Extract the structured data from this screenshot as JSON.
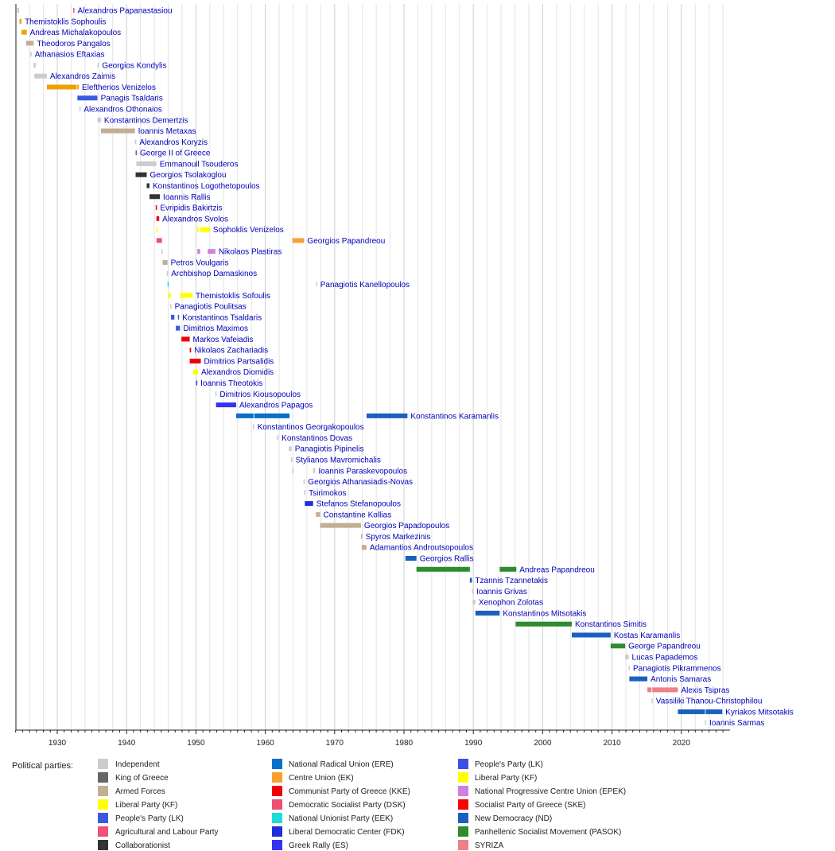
{
  "chart_data": {
    "type": "timeline",
    "xlim": [
      1924,
      2027
    ],
    "x_ticks": [
      1930,
      1940,
      1950,
      1960,
      1970,
      1980,
      1990,
      2000,
      2010,
      2020
    ],
    "grid": true,
    "legend_title": "Political parties:",
    "legend_placement": "bottom",
    "parties": [
      {
        "key": "ind",
        "name": "Independent",
        "color": "#cccccc"
      },
      {
        "key": "king",
        "name": "King of Greece",
        "color": "#666666"
      },
      {
        "key": "army",
        "name": "Armed Forces",
        "color": "#c2ae92"
      },
      {
        "key": "kf",
        "name": "Liberal Party (KF)",
        "color": "#ffff00"
      },
      {
        "key": "lk",
        "name": "People's Party (LK)",
        "color": "#3c5ae0"
      },
      {
        "key": "agr",
        "name": "Agricultural and Labour Party",
        "color": "#f0507a"
      },
      {
        "key": "col",
        "name": "Collaborationist",
        "color": "#333333"
      },
      {
        "key": "ere",
        "name": "National Radical Union (ERE)",
        "color": "#0a6fc8"
      },
      {
        "key": "ek",
        "name": "Centre Union (EK)",
        "color": "#f7a030"
      },
      {
        "key": "kke",
        "name": "Communist Party of Greece (KKE)",
        "color": "#f00000"
      },
      {
        "key": "dsk",
        "name": "Democratic Socialist Party (DSK)",
        "color": "#f05070"
      },
      {
        "key": "eek",
        "name": "National Unionist Party (EEK)",
        "color": "#20dcd8"
      },
      {
        "key": "fdk",
        "name": "Liberal Democratic Center (FDK)",
        "color": "#1e30dc"
      },
      {
        "key": "es",
        "name": "Greek Rally (ES)",
        "color": "#3434f0"
      },
      {
        "key": "lk2",
        "name": "People's Party (LK)",
        "color": "#3c50e8"
      },
      {
        "key": "kf2",
        "name": "Liberal Party (KF)",
        "color": "#ffff00"
      },
      {
        "key": "epek",
        "name": "National Progressive Centre Union (EPEK)",
        "color": "#cc80e0"
      },
      {
        "key": "ske",
        "name": "Socialist Party of Greece (SKE)",
        "color": "#ff0000"
      },
      {
        "key": "nd",
        "name": "New Democracy (ND)",
        "color": "#1a60c0"
      },
      {
        "key": "pasok",
        "name": "Panhellenic Socialist Movement (PASOK)",
        "color": "#2e8b2e"
      },
      {
        "key": "syriza",
        "name": "SYRIZA",
        "color": "#ee8088"
      }
    ],
    "extra_colors": {
      "lib": "#f0a000"
    },
    "rows": [
      {
        "name": "Alexandros Papanastasiou",
        "terms": [
          [
            1924.2,
            1924.5,
            "ind"
          ],
          [
            1932.3,
            1932.45,
            "agr"
          ]
        ]
      },
      {
        "name": "Themistoklis Sophoulis",
        "terms": [
          [
            1924.55,
            1924.85,
            "lib"
          ]
        ]
      },
      {
        "name": "Andreas Michalakopoulos",
        "terms": [
          [
            1924.85,
            1925.6,
            "lib"
          ]
        ]
      },
      {
        "name": "Theodoros Pangalos",
        "terms": [
          [
            1925.5,
            1926.6,
            "army"
          ]
        ]
      },
      {
        "name": "Athanasios Eftaxias",
        "terms": [
          [
            1926.1,
            1926.3,
            "ind"
          ]
        ]
      },
      {
        "name": "Georgios Kondylis",
        "terms": [
          [
            1926.6,
            1926.9,
            "ind"
          ],
          [
            1935.8,
            1936.0,
            "ind"
          ]
        ]
      },
      {
        "name": "Alexandros Zaimis",
        "terms": [
          [
            1926.7,
            1928.5,
            "ind"
          ]
        ]
      },
      {
        "name": "Eleftherios Venizelos",
        "terms": [
          [
            1928.5,
            1932.8,
            "lib"
          ],
          [
            1932.9,
            1933.1,
            "lib"
          ]
        ]
      },
      {
        "name": "Panagis Tsaldaris",
        "terms": [
          [
            1932.9,
            1935.8,
            "lk"
          ]
        ]
      },
      {
        "name": "Alexandros Othonaios",
        "terms": [
          [
            1933.2,
            1933.3,
            "ind"
          ]
        ]
      },
      {
        "name": "Konstantinos Demertzis",
        "terms": [
          [
            1935.8,
            1936.3,
            "ind"
          ]
        ]
      },
      {
        "name": "Ioannis Metaxas",
        "terms": [
          [
            1936.3,
            1941.2,
            "army"
          ]
        ]
      },
      {
        "name": "Alexandros Koryzis",
        "terms": [
          [
            1941.2,
            1941.4,
            "ind"
          ]
        ]
      },
      {
        "name": "George II of Greece",
        "terms": [
          [
            1941.3,
            1941.4,
            "king"
          ]
        ]
      },
      {
        "name": "Emmanouil Tsouderos",
        "terms": [
          [
            1941.4,
            1944.3,
            "ind"
          ]
        ]
      },
      {
        "name": "Georgios Tsolakoglou",
        "terms": [
          [
            1941.3,
            1942.9,
            "col"
          ]
        ]
      },
      {
        "name": "Konstantinos Logothetopoulos",
        "terms": [
          [
            1942.9,
            1943.3,
            "col"
          ]
        ]
      },
      {
        "name": "Ioannis Rallis",
        "terms": [
          [
            1943.3,
            1944.8,
            "col"
          ]
        ]
      },
      {
        "name": "Evripidis Bakirtzis",
        "terms": [
          [
            1944.2,
            1944.35,
            "kke"
          ]
        ]
      },
      {
        "name": "Alexandros Svolos",
        "terms": [
          [
            1944.3,
            1944.7,
            "kke"
          ]
        ]
      },
      {
        "name": "Sophoklis Venizelos",
        "terms": [
          [
            1944.3,
            1944.4,
            "kf"
          ],
          [
            1950.2,
            1950.4,
            "kf"
          ],
          [
            1950.6,
            1952.0,
            "kf"
          ]
        ]
      },
      {
        "name": "Georgios Papandreou",
        "terms": [
          [
            1944.3,
            1945.1,
            "dsk"
          ],
          [
            1963.9,
            1965.6,
            "ek"
          ]
        ]
      },
      {
        "name": "Nikolaos Plastiras",
        "terms": [
          [
            1945.0,
            1945.2,
            "ind"
          ],
          [
            1950.2,
            1950.6,
            "epek"
          ],
          [
            1951.7,
            1952.8,
            "epek"
          ]
        ]
      },
      {
        "name": "Petros Voulgaris",
        "terms": [
          [
            1945.2,
            1945.9,
            "army"
          ]
        ]
      },
      {
        "name": "Archbishop Damaskinos",
        "terms": [
          [
            1945.8,
            1945.9,
            "ind"
          ]
        ]
      },
      {
        "name": "Panagiotis Kanellopoulos",
        "terms": [
          [
            1945.9,
            1946.1,
            "eek"
          ],
          [
            1967.3,
            1967.4,
            "ind"
          ]
        ]
      },
      {
        "name": "Themistoklis Sofoulis",
        "terms": [
          [
            1946.0,
            1946.4,
            "kf"
          ],
          [
            1947.7,
            1949.5,
            "kf"
          ]
        ]
      },
      {
        "name": "Panagiotis Poulitsas",
        "terms": [
          [
            1946.3,
            1946.4,
            "ind"
          ]
        ]
      },
      {
        "name": "Konstantinos Tsaldaris",
        "terms": [
          [
            1946.4,
            1946.9,
            "lk"
          ],
          [
            1947.4,
            1947.5,
            "lk"
          ]
        ]
      },
      {
        "name": "Dimitrios Maximos",
        "terms": [
          [
            1947.1,
            1947.7,
            "lk"
          ]
        ]
      },
      {
        "name": "Markos Vafeiadis",
        "terms": [
          [
            1947.9,
            1949.1,
            "kke"
          ]
        ]
      },
      {
        "name": "Nikolaos Zachariadis",
        "terms": [
          [
            1949.1,
            1949.3,
            "kke"
          ]
        ]
      },
      {
        "name": "Dimitrios Partsalidis",
        "terms": [
          [
            1949.1,
            1950.7,
            "kke"
          ]
        ]
      },
      {
        "name": "Alexandros Diomidis",
        "terms": [
          [
            1949.6,
            1950.3,
            "kf"
          ]
        ]
      },
      {
        "name": "Ioannis Theotokis",
        "terms": [
          [
            1950.0,
            1950.2,
            "lk"
          ]
        ]
      },
      {
        "name": "Dimitrios Kiousopoulos",
        "terms": [
          [
            1952.8,
            1952.95,
            "ind"
          ]
        ]
      },
      {
        "name": "Alexandros Papagos",
        "terms": [
          [
            1952.9,
            1955.8,
            "es"
          ]
        ]
      },
      {
        "name": "Konstantinos Karamanlis",
        "terms": [
          [
            1955.8,
            1958.3,
            "ere"
          ],
          [
            1958.4,
            1963.5,
            "ere"
          ],
          [
            1974.6,
            1980.5,
            "nd"
          ]
        ]
      },
      {
        "name": "Konstantinos Georgakopoulos",
        "terms": [
          [
            1958.2,
            1958.4,
            "ind"
          ]
        ]
      },
      {
        "name": "Konstantinos Dovas",
        "terms": [
          [
            1961.7,
            1961.9,
            "ind"
          ]
        ]
      },
      {
        "name": "Panagiotis Pipinelis",
        "terms": [
          [
            1963.4,
            1963.8,
            "ind"
          ]
        ]
      },
      {
        "name": "Stylianos Mavromichalis",
        "terms": [
          [
            1963.7,
            1963.9,
            "ind"
          ]
        ]
      },
      {
        "name": "Ioannis Paraskevopoulos",
        "terms": [
          [
            1963.9,
            1964.1,
            "ind"
          ],
          [
            1966.9,
            1967.2,
            "ind"
          ]
        ]
      },
      {
        "name": "Georgios Athanasiadis-Novas",
        "terms": [
          [
            1965.5,
            1965.7,
            "ind"
          ]
        ]
      },
      {
        "name": "Tsirimokos",
        "terms": [
          [
            1965.6,
            1965.8,
            "ind"
          ]
        ]
      },
      {
        "name": "Stefanos Stefanopoulos",
        "terms": [
          [
            1965.7,
            1966.9,
            "fdk"
          ]
        ]
      },
      {
        "name": "Constantine Kollias",
        "terms": [
          [
            1967.3,
            1967.9,
            "army"
          ]
        ]
      },
      {
        "name": "Georgios Papadopoulos",
        "terms": [
          [
            1967.9,
            1973.8,
            "army"
          ]
        ]
      },
      {
        "name": "Spyros Markezinis",
        "terms": [
          [
            1973.8,
            1974.0,
            "army"
          ]
        ]
      },
      {
        "name": "Adamantios Androutsopoulos",
        "terms": [
          [
            1973.9,
            1974.6,
            "army"
          ]
        ]
      },
      {
        "name": "Georgios Rallis",
        "terms": [
          [
            1980.2,
            1981.8,
            "nd"
          ]
        ]
      },
      {
        "name": "Andreas Papandreou",
        "terms": [
          [
            1981.8,
            1989.5,
            "pasok"
          ],
          [
            1993.8,
            1996.2,
            "pasok"
          ]
        ]
      },
      {
        "name": "Tzannis Tzannetakis",
        "terms": [
          [
            1989.5,
            1989.8,
            "nd"
          ]
        ]
      },
      {
        "name": "Ioannis Grivas",
        "terms": [
          [
            1989.8,
            1989.9,
            "ind"
          ]
        ]
      },
      {
        "name": "Xenophon Zolotas",
        "terms": [
          [
            1989.9,
            1990.3,
            "ind"
          ]
        ]
      },
      {
        "name": "Konstantinos Mitsotakis",
        "terms": [
          [
            1990.3,
            1993.8,
            "nd"
          ]
        ]
      },
      {
        "name": "Konstantinos Simitis",
        "terms": [
          [
            1996.1,
            2004.2,
            "pasok"
          ]
        ]
      },
      {
        "name": "Kostas Karamanlis",
        "terms": [
          [
            2004.2,
            2009.8,
            "nd"
          ]
        ]
      },
      {
        "name": "George Papandreou",
        "terms": [
          [
            2009.8,
            2011.9,
            "pasok"
          ]
        ]
      },
      {
        "name": "Lucas Papademos",
        "terms": [
          [
            2011.9,
            2012.4,
            "ind"
          ]
        ]
      },
      {
        "name": "Panagiotis Pikrammenos",
        "terms": [
          [
            2012.4,
            2012.5,
            "ind"
          ]
        ]
      },
      {
        "name": "Antonis Samaras",
        "terms": [
          [
            2012.5,
            2015.1,
            "nd"
          ]
        ]
      },
      {
        "name": "Alexis Tsipras",
        "terms": [
          [
            2015.1,
            2015.7,
            "syriza"
          ],
          [
            2015.8,
            2019.5,
            "syriza"
          ]
        ]
      },
      {
        "name": "Vassiliki Thanou-Christophilou",
        "terms": [
          [
            2015.7,
            2015.8,
            "ind"
          ]
        ]
      },
      {
        "name": "Kyriakos Mitsotakis",
        "terms": [
          [
            2019.5,
            2023.4,
            "nd"
          ],
          [
            2023.5,
            2025.9,
            "nd"
          ]
        ]
      },
      {
        "name": "Ioannis Sarmas",
        "terms": [
          [
            2023.4,
            2023.5,
            "ind"
          ]
        ]
      }
    ]
  }
}
